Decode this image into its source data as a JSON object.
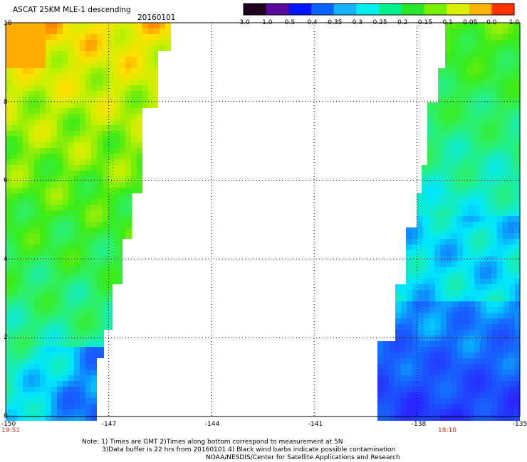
{
  "header": {
    "title": "ASCAT 25KM MLE-1 descending",
    "date": "20160101"
  },
  "colorbar": {
    "labels": [
      "-3.0",
      "-1.0",
      "-0.5",
      "-0.4",
      "-0.35",
      "-0.3",
      "-0.25",
      "-0.2",
      "-0.15",
      "-0.1",
      "-0.05",
      "0.0",
      "1.0"
    ],
    "colors": [
      "#1e001e",
      "#5a0a9a",
      "#0014ff",
      "#0a64ff",
      "#14b4ff",
      "#00f0f0",
      "#00f08c",
      "#28e628",
      "#78f000",
      "#dcf000",
      "#ffb400",
      "#ff3200"
    ]
  },
  "map": {
    "lon_range": [
      -150,
      -135
    ],
    "lat_range": [
      0,
      10
    ],
    "lon_ticks": [
      "-150",
      "-147",
      "-144",
      "-141",
      "-138",
      "-135"
    ],
    "lat_ticks": [
      "0",
      "2",
      "4",
      "6",
      "8",
      "10"
    ],
    "left_swath_time": "19:51",
    "right_swath_time": "18:10"
  },
  "footer": {
    "note1": "Note: 1) Times are GMT 2)Times along bottom correspond to measurement at 5N",
    "note2": "3)Data buffer is 22 hrs from 20160101 4) Black wind barbs indicate possible contamination",
    "note3": "NOAA/NESDIS/Center for Satellite Applications and Research"
  }
}
